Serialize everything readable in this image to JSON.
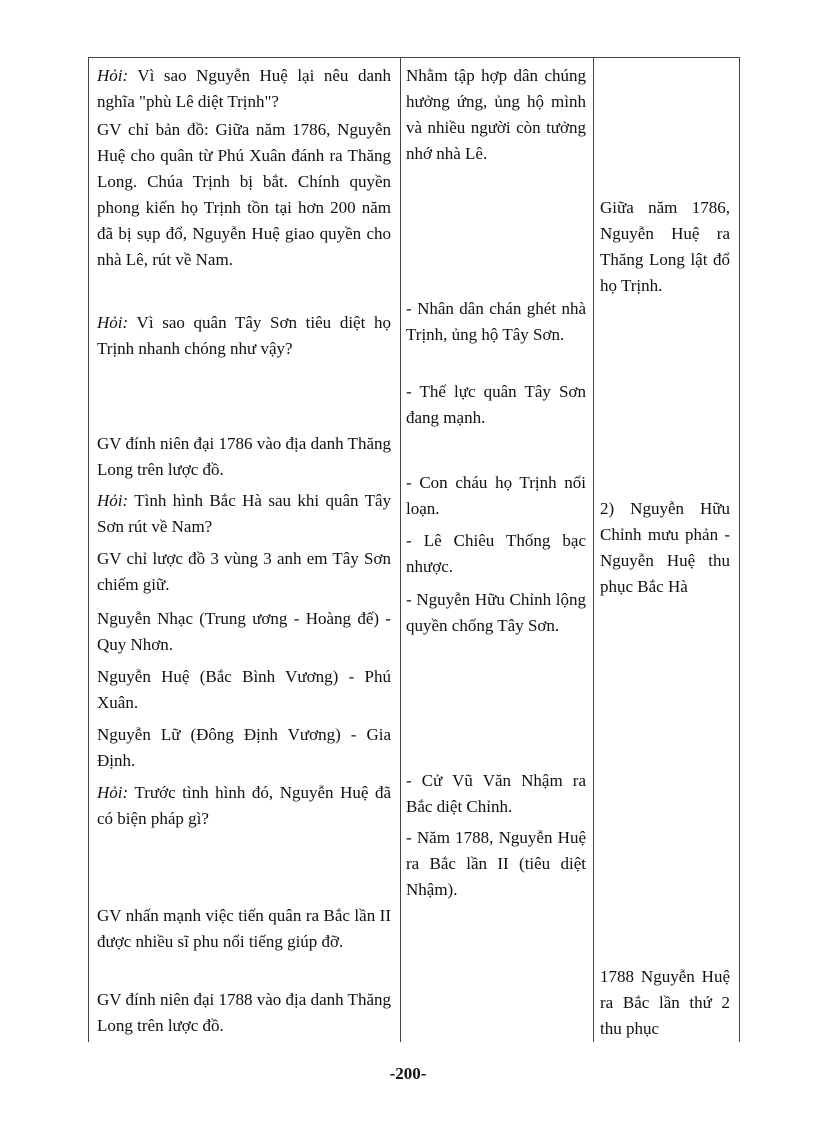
{
  "table": {
    "col1": [
      {
        "label": "Hỏi:",
        "text": " Vì sao Nguyễn Huệ lại nêu danh nghĩa \"phù Lê diệt Trịnh\"?"
      },
      {
        "label": "",
        "text": "GV chỉ bản đồ: Giữa năm 1786, Nguyễn Huệ cho quân từ Phú Xuân đánh ra Thăng Long. Chúa Trịnh bị bắt. Chính quyền phong kiến họ Trịnh tồn tại hơn 200 năm đã bị sụp đổ, Nguyễn Huệ giao quyền cho nhà Lê, rút về Nam."
      },
      {
        "label": "Hỏi:",
        "text": " Vì sao quân Tây Sơn tiêu diệt họ Trịnh nhanh chóng như vậy?"
      },
      {
        "label": "",
        "text": "GV đính niên đại 1786 vào địa danh Thăng Long trên lược đồ."
      },
      {
        "label": "Hỏi:",
        "text": " Tình hình Bắc Hà sau khi quân Tây Sơn rút về Nam?"
      },
      {
        "label": "",
        "text": "GV chỉ lược đồ 3 vùng 3 anh em Tây Sơn chiếm giữ."
      },
      {
        "label": "",
        "text": "Nguyễn Nhạc (Trung ương - Hoàng đế) - Quy Nhơn."
      },
      {
        "label": "",
        "text": "Nguyễn Huệ (Bắc Bình Vương) - Phú Xuân."
      },
      {
        "label": "",
        "text": "Nguyễn Lữ (Đông Định Vương) - Gia Định."
      },
      {
        "label": "Hỏi:",
        "text": " Trước tình hình đó, Nguyễn Huệ đã có biện pháp gì?"
      },
      {
        "label": "",
        "text": "GV nhấn mạnh việc tiến quân ra Bắc lần II được nhiều sĩ phu nổi tiếng giúp đỡ."
      },
      {
        "label": "",
        "text": "GV đính niên đại 1788 vào địa danh Thăng Long trên lược đồ."
      }
    ],
    "col2": [
      "Nhằm tập hợp dân chúng hưởng ứng, ủng hộ mình và nhiều người còn tưởng nhớ nhà Lê.",
      "- Nhân dân chán ghét nhà Trịnh, ủng hộ Tây Sơn.",
      "- Thế lực quân Tây Sơn đang mạnh.",
      "- Con cháu họ Trịnh nổi loạn.",
      "- Lê Chiêu Thống bạc nhược.",
      "- Nguyễn Hữu Chỉnh lộng quyền chống Tây Sơn.",
      "- Cử Vũ Văn Nhậm ra Bắc diệt Chỉnh.",
      "- Năm 1788, Nguyễn Huệ ra Bắc lần II (tiêu diệt Nhậm)."
    ],
    "col3": [
      "Giữa năm 1786, Nguyễn Huệ ra Thăng Long lật đổ họ Trịnh.",
      "2) Nguyễn Hữu Chỉnh mưu phản - Nguyễn Huệ thu phục Bắc Hà",
      "1788 Nguyễn Huệ ra Bắc lần thứ 2 thu phục"
    ]
  },
  "page_number": "-200-"
}
